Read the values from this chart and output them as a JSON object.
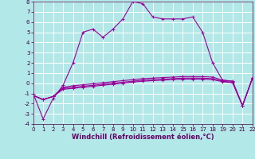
{
  "xlabel": "Windchill (Refroidissement éolien,°C)",
  "xlim": [
    0,
    22
  ],
  "ylim": [
    -4,
    8
  ],
  "yticks": [
    -4,
    -3,
    -2,
    -1,
    0,
    1,
    2,
    3,
    4,
    5,
    6,
    7,
    8
  ],
  "xticks": [
    0,
    1,
    2,
    3,
    4,
    5,
    6,
    7,
    8,
    9,
    10,
    11,
    12,
    13,
    14,
    15,
    16,
    17,
    18,
    19,
    20,
    21,
    22
  ],
  "bg_color": "#b2e8e8",
  "grid_color": "#ffffff",
  "line_color": "#990099",
  "line1_x": [
    0,
    1,
    2,
    3,
    4,
    5,
    6,
    7,
    8,
    9,
    10,
    11,
    12,
    13,
    14,
    15,
    16,
    17,
    18,
    19,
    20,
    21,
    22
  ],
  "line1_y": [
    -1.0,
    -3.5,
    -1.5,
    -0.2,
    2.0,
    5.0,
    5.3,
    4.5,
    5.3,
    6.3,
    8.0,
    7.8,
    6.5,
    6.3,
    6.3,
    6.3,
    6.5,
    5.0,
    2.0,
    0.3,
    0.2,
    -2.2,
    0.5
  ],
  "line2_x": [
    0,
    1,
    2,
    3,
    4,
    5,
    6,
    7,
    8,
    9,
    10,
    11,
    12,
    13,
    14,
    15,
    16,
    17,
    18,
    19,
    20,
    21,
    22
  ],
  "line2_y": [
    -1.2,
    -1.6,
    -1.3,
    -0.4,
    -0.25,
    -0.15,
    -0.05,
    0.05,
    0.15,
    0.25,
    0.35,
    0.45,
    0.5,
    0.55,
    0.6,
    0.65,
    0.65,
    0.65,
    0.6,
    0.3,
    0.2,
    -2.2,
    0.5
  ],
  "line3_x": [
    0,
    1,
    2,
    3,
    4,
    5,
    6,
    7,
    8,
    9,
    10,
    11,
    12,
    13,
    14,
    15,
    16,
    17,
    18,
    19,
    20,
    21,
    22
  ],
  "line3_y": [
    -1.2,
    -1.6,
    -1.3,
    -0.5,
    -0.4,
    -0.3,
    -0.2,
    -0.1,
    0.0,
    0.1,
    0.2,
    0.3,
    0.35,
    0.4,
    0.45,
    0.5,
    0.5,
    0.5,
    0.45,
    0.2,
    0.1,
    -2.2,
    0.5
  ],
  "line4_x": [
    0,
    1,
    2,
    3,
    4,
    5,
    6,
    7,
    8,
    9,
    10,
    11,
    12,
    13,
    14,
    15,
    16,
    17,
    18,
    19,
    20,
    21,
    22
  ],
  "line4_y": [
    -1.2,
    -1.6,
    -1.3,
    -0.6,
    -0.5,
    -0.4,
    -0.3,
    -0.2,
    -0.1,
    0.0,
    0.1,
    0.2,
    0.25,
    0.3,
    0.35,
    0.4,
    0.4,
    0.4,
    0.35,
    0.15,
    0.05,
    -2.2,
    0.5
  ]
}
